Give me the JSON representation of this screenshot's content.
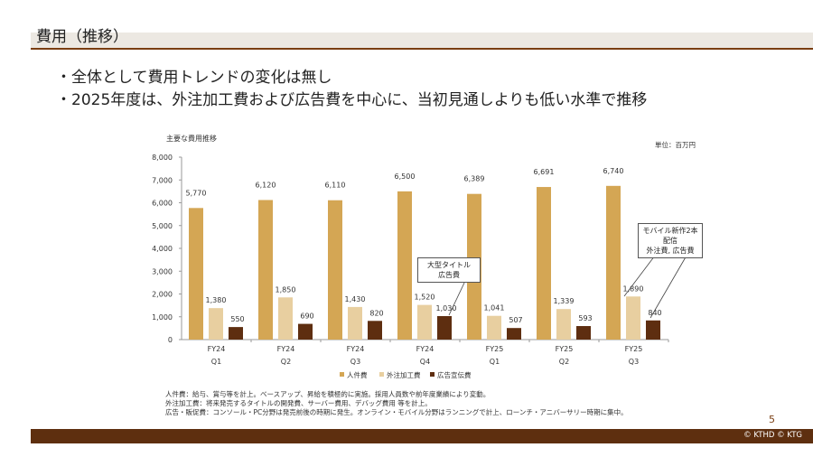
{
  "header": {
    "title": "費用（推移）"
  },
  "bullets": [
    "全体として費用トレンドの変化は無し",
    "2025年度は、外注加工費および広告費を中心に、当初見通しよりも低い水準で推移"
  ],
  "chart_data": {
    "type": "bar",
    "title": "主要な費用推移",
    "unit_label": "単位：百万円",
    "categories": [
      [
        "FY24",
        "Q1"
      ],
      [
        "FY24",
        "Q2"
      ],
      [
        "FY24",
        "Q3"
      ],
      [
        "FY24",
        "Q4"
      ],
      [
        "FY25",
        "Q1"
      ],
      [
        "FY25",
        "Q2"
      ],
      [
        "FY25",
        "Q3"
      ]
    ],
    "series": [
      {
        "name": "人件費",
        "color": "#D4A654",
        "values": [
          5770,
          6120,
          6110,
          6500,
          6389,
          6691,
          6740
        ],
        "labels": [
          "5,770",
          "6,120",
          "6,110",
          "6,500",
          "6,389",
          "6,691",
          "6,740"
        ]
      },
      {
        "name": "外注加工費",
        "color": "#E8CFA0",
        "values": [
          1380,
          1850,
          1430,
          1520,
          1041,
          1339,
          1890
        ],
        "labels": [
          "1,380",
          "1,850",
          "1,430",
          "1,520",
          "1,041",
          "1,339",
          "1,890"
        ]
      },
      {
        "name": "広告宣伝費",
        "color": "#5E2E10",
        "values": [
          550,
          690,
          820,
          1030,
          507,
          593,
          840
        ],
        "labels": [
          "550",
          "690",
          "820",
          "1,030",
          "507",
          "593",
          "840"
        ]
      }
    ],
    "ylim": [
      0,
      8000
    ],
    "yticks": [
      0,
      1000,
      2000,
      3000,
      4000,
      5000,
      6000,
      7000,
      8000
    ],
    "ytick_labels": [
      "0",
      "1,000",
      "2,000",
      "3,000",
      "4,000",
      "5,000",
      "6,000",
      "7,000",
      "8,000"
    ],
    "legend_position": "bottom",
    "annotations": [
      {
        "lines": [
          "大型タイトル",
          "広告費"
        ]
      },
      {
        "lines": [
          "モバイル新作2本配信",
          "外注費, 広告費"
        ]
      }
    ]
  },
  "notes": [
    "人件費：給与、賞与等を計上。ベースアップ、昇給を積極的に実施。採用人員数や前年度業績により変動。",
    "外注加工費：将来発売するタイトルの開発費、サーバー費用、デバッグ費用 等を計上。",
    "広告・販促費：コンソール・PC分野は発売前後の時期に発生。オンライン・モバイル分野はランニングで計上、ローンチ・アニバーサリー時期に集中。"
  ],
  "page_number": "5",
  "footer": {
    "copyright": "© KTHD © KTG"
  }
}
